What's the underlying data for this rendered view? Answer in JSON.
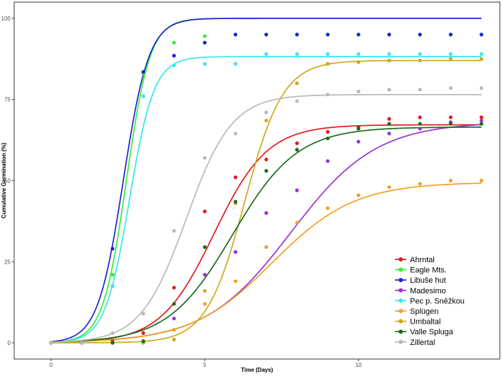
{
  "chart_data": {
    "type": "scatter",
    "title": "",
    "xlabel": "Time (Days)",
    "ylabel": "Cumulative Germination (%)",
    "xlim": [
      -1.2,
      14.6
    ],
    "ylim": [
      -5,
      105
    ],
    "x_ticks": [
      0,
      5,
      10
    ],
    "y_ticks": [
      0,
      25,
      50,
      75,
      100
    ],
    "grid": false,
    "legend_position": "bottom-right",
    "fit_curves": "logistic",
    "series": [
      {
        "name": "Ahrntal",
        "color": "#e41a1c",
        "x": [
          0,
          1,
          2,
          3,
          4,
          5,
          6,
          7,
          8,
          9,
          10,
          11,
          12,
          13,
          14
        ],
        "y": [
          0,
          0,
          0.5,
          3,
          17,
          40.5,
          51,
          56.5,
          61.5,
          65,
          66.5,
          69,
          69.5,
          69.5,
          69.5
        ],
        "fit": {
          "K": 67.2,
          "x0": 5.3,
          "k": 1.15
        }
      },
      {
        "name": "Eagle Mts.",
        "color": "#33ee33",
        "x": [
          0,
          1,
          2,
          3,
          4,
          5,
          6,
          7,
          8,
          9,
          10,
          11,
          12,
          13,
          14
        ],
        "y": [
          0,
          0,
          21,
          83,
          92.5,
          94.5,
          95,
          95,
          95,
          95,
          95,
          95,
          95,
          95,
          95
        ],
        "fit": {
          "K": 100,
          "x0": 2.45,
          "k": 2.6
        }
      },
      {
        "name": "Libuše hut",
        "color": "#1f1fd6",
        "x": [
          0,
          1,
          2,
          3,
          4,
          5,
          6,
          7,
          8,
          9,
          10,
          11,
          12,
          13,
          14
        ],
        "y": [
          0,
          0,
          29,
          83.5,
          88.5,
          92.5,
          95,
          95,
          95,
          95,
          95,
          95,
          95,
          95,
          95
        ],
        "fit": {
          "K": 100,
          "x0": 2.35,
          "k": 2.4
        }
      },
      {
        "name": "Madesimo",
        "color": "#9a32cd",
        "x": [
          0,
          1,
          2,
          3,
          4,
          5,
          6,
          7,
          8,
          9,
          10,
          11,
          12,
          13,
          14
        ],
        "y": [
          0,
          0,
          0,
          0.5,
          7.5,
          21,
          28,
          40,
          47,
          56,
          62,
          64.5,
          66,
          68,
          68.5
        ],
        "fit": {
          "K": 68,
          "x0": 7.8,
          "k": 0.72
        }
      },
      {
        "name": "Pec p. Sněžkou",
        "color": "#33e8ee",
        "x": [
          0,
          1,
          2,
          3,
          4,
          5,
          6,
          7,
          8,
          9,
          10,
          11,
          12,
          13,
          14
        ],
        "y": [
          0,
          0,
          17.5,
          76,
          85.5,
          86,
          86,
          89,
          89,
          89,
          89,
          89,
          89,
          89,
          89
        ],
        "fit": {
          "K": 88.2,
          "x0": 2.55,
          "k": 2.5
        }
      },
      {
        "name": "Splügen",
        "color": "#f0a020",
        "x": [
          0,
          1,
          2,
          3,
          4,
          5,
          6,
          7,
          8,
          9,
          10,
          11,
          12,
          13,
          14
        ],
        "y": [
          0,
          0,
          0,
          0,
          4,
          12,
          19,
          29.5,
          37,
          41.5,
          45.5,
          48,
          49,
          50,
          50
        ],
        "fit": {
          "K": 49.5,
          "x0": 7.2,
          "k": 0.75
        }
      },
      {
        "name": "Umbaltal",
        "color": "#ccaa1a",
        "x": [
          0,
          1,
          2,
          3,
          4,
          5,
          6,
          7,
          8,
          9,
          10,
          11,
          12,
          13,
          14
        ],
        "y": [
          0,
          0,
          0,
          0,
          1,
          16,
          43,
          68.5,
          80,
          86,
          86.5,
          87,
          87,
          87.5,
          87.5
        ],
        "fit": {
          "K": 87,
          "x0": 6.3,
          "k": 1.6
        }
      },
      {
        "name": "Valle Spluga",
        "color": "#1a6b1a",
        "x": [
          0,
          1,
          2,
          3,
          4,
          5,
          6,
          7,
          8,
          9,
          10,
          11,
          12,
          13,
          14
        ],
        "y": [
          0,
          0,
          0,
          0.5,
          12,
          29.5,
          43.5,
          53,
          59.5,
          63,
          66,
          67.5,
          67.5,
          67.5,
          67.5
        ],
        "fit": {
          "K": 66.5,
          "x0": 5.9,
          "k": 0.95
        }
      },
      {
        "name": "Zillertal",
        "color": "#b8b8b8",
        "x": [
          0,
          1,
          2,
          3,
          4,
          5,
          6,
          7,
          8,
          9,
          10,
          11,
          12,
          13,
          14
        ],
        "y": [
          0,
          0,
          3,
          9,
          34.5,
          57,
          64.5,
          71,
          74.5,
          76.5,
          77.5,
          78,
          78,
          78.5,
          78.5
        ],
        "fit": {
          "K": 76.5,
          "x0": 4.4,
          "k": 1.35
        }
      }
    ]
  }
}
